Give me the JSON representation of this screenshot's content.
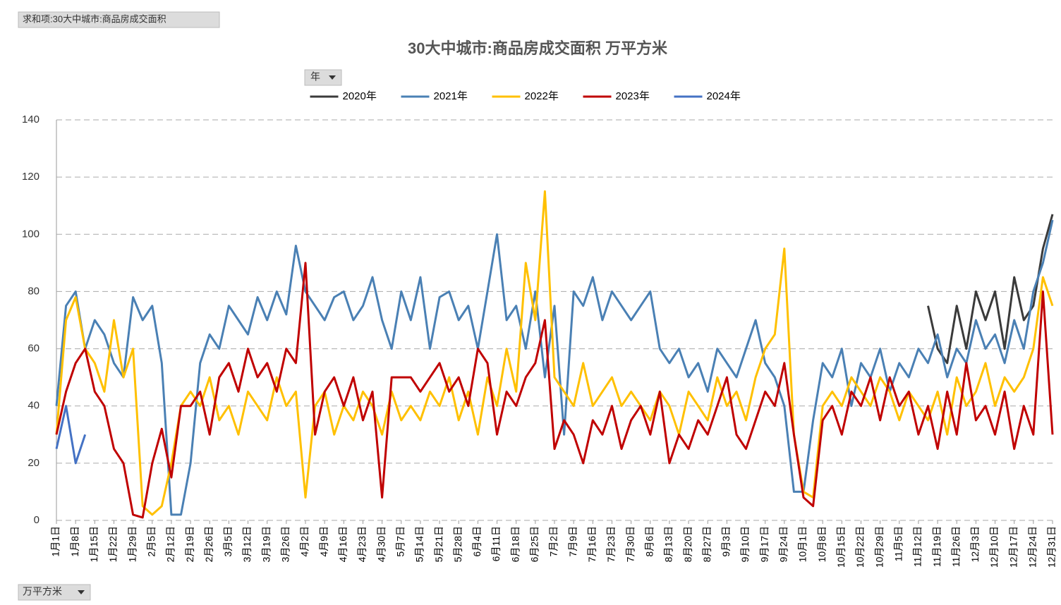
{
  "ui": {
    "field_tag": "求和项:30大中城市:商品房成交面积",
    "filter_button": "年",
    "unit_button": "万平方米"
  },
  "chart_data": {
    "type": "line",
    "title": "30大中城市:商品房成交面积 万平方米",
    "categories": [
      "1月1日",
      null,
      "1月8日",
      null,
      "1月15日",
      null,
      "1月22日",
      null,
      "1月29日",
      null,
      "2月5日",
      null,
      "2月12日",
      null,
      "2月19日",
      null,
      "2月26日",
      null,
      "3月5日",
      null,
      "3月12日",
      null,
      "3月19日",
      null,
      "3月26日",
      null,
      "4月2日",
      null,
      "4月9日",
      null,
      "4月16日",
      null,
      "4月23日",
      null,
      "4月30日",
      null,
      "5月7日",
      null,
      "5月14日",
      null,
      "5月21日",
      null,
      "5月28日",
      null,
      "6月4日",
      null,
      "6月11日",
      null,
      "6月18日",
      null,
      "6月25日",
      null,
      "7月2日",
      null,
      "7月9日",
      null,
      "7月16日",
      null,
      "7月23日",
      null,
      "7月30日",
      null,
      "8月6日",
      null,
      "8月13日",
      null,
      "8月20日",
      null,
      "8月27日",
      null,
      "9月3日",
      null,
      "9月10日",
      null,
      "9月17日",
      null,
      "9月24日",
      null,
      "10月1日",
      null,
      "10月8日",
      null,
      "10月15日",
      null,
      "10月22日",
      null,
      "10月29日",
      null,
      "11月5日",
      null,
      "11月12日",
      null,
      "11月19日",
      null,
      "11月26日",
      null,
      "12月3日",
      null,
      "12月10日",
      null,
      "12月17日",
      null,
      "12月24日",
      null,
      "12月31日"
    ],
    "series": [
      {
        "name": "2020年",
        "color": "#3a3a3a",
        "values": [
          null,
          null,
          null,
          null,
          null,
          null,
          null,
          null,
          null,
          null,
          null,
          null,
          null,
          null,
          null,
          null,
          null,
          null,
          null,
          null,
          null,
          null,
          null,
          null,
          null,
          null,
          null,
          null,
          null,
          null,
          null,
          null,
          null,
          null,
          null,
          null,
          null,
          null,
          null,
          null,
          null,
          null,
          null,
          null,
          null,
          null,
          null,
          null,
          null,
          null,
          null,
          null,
          null,
          null,
          null,
          null,
          null,
          null,
          null,
          null,
          null,
          null,
          null,
          null,
          null,
          null,
          null,
          null,
          null,
          null,
          null,
          null,
          null,
          null,
          null,
          null,
          null,
          null,
          null,
          null,
          null,
          null,
          null,
          null,
          null,
          null,
          null,
          null,
          null,
          null,
          null,
          75,
          60,
          55,
          75,
          60,
          80,
          70,
          80,
          60,
          85,
          70,
          75,
          95,
          107
        ]
      },
      {
        "name": "2021年",
        "color": "#4a80b4",
        "values": [
          40,
          75,
          80,
          60,
          70,
          65,
          55,
          50,
          78,
          70,
          75,
          55,
          2,
          2,
          20,
          55,
          65,
          60,
          75,
          70,
          65,
          78,
          70,
          80,
          72,
          96,
          80,
          75,
          70,
          78,
          80,
          70,
          75,
          85,
          70,
          60,
          80,
          70,
          85,
          60,
          78,
          80,
          70,
          75,
          60,
          80,
          100,
          70,
          75,
          60,
          80,
          50,
          75,
          30,
          80,
          75,
          85,
          70,
          80,
          75,
          70,
          75,
          80,
          60,
          55,
          60,
          50,
          55,
          45,
          60,
          55,
          50,
          60,
          70,
          55,
          50,
          40,
          10,
          10,
          35,
          55,
          50,
          60,
          40,
          55,
          50,
          60,
          45,
          55,
          50,
          60,
          55,
          65,
          50,
          60,
          55,
          70,
          60,
          65,
          55,
          70,
          60,
          80,
          90,
          105
        ]
      },
      {
        "name": "2022年",
        "color": "#ffc000",
        "values": [
          30,
          70,
          78,
          60,
          55,
          45,
          70,
          50,
          60,
          5,
          2,
          5,
          20,
          40,
          45,
          40,
          50,
          35,
          40,
          30,
          45,
          40,
          35,
          50,
          40,
          45,
          8,
          40,
          45,
          30,
          40,
          35,
          45,
          40,
          30,
          45,
          35,
          40,
          35,
          45,
          40,
          50,
          35,
          45,
          30,
          50,
          40,
          60,
          45,
          90,
          70,
          115,
          50,
          45,
          40,
          55,
          40,
          45,
          50,
          40,
          45,
          40,
          35,
          45,
          40,
          30,
          45,
          40,
          35,
          50,
          40,
          45,
          35,
          50,
          60,
          65,
          95,
          30,
          10,
          8,
          40,
          45,
          40,
          50,
          45,
          40,
          50,
          45,
          35,
          45,
          40,
          35,
          45,
          30,
          50,
          40,
          45,
          55,
          40,
          50,
          45,
          50,
          60,
          85,
          75
        ]
      },
      {
        "name": "2023年",
        "color": "#c00000",
        "values": [
          30,
          45,
          55,
          60,
          45,
          40,
          25,
          20,
          2,
          1,
          20,
          32,
          15,
          40,
          40,
          45,
          30,
          50,
          55,
          45,
          60,
          50,
          55,
          45,
          60,
          55,
          90,
          30,
          45,
          50,
          40,
          50,
          35,
          45,
          8,
          50,
          50,
          50,
          45,
          50,
          55,
          45,
          50,
          40,
          60,
          55,
          30,
          45,
          40,
          50,
          55,
          70,
          25,
          35,
          30,
          20,
          35,
          30,
          40,
          25,
          35,
          40,
          30,
          45,
          20,
          30,
          25,
          35,
          30,
          40,
          50,
          30,
          25,
          35,
          45,
          40,
          55,
          30,
          8,
          5,
          35,
          40,
          30,
          45,
          40,
          50,
          35,
          50,
          40,
          45,
          30,
          40,
          25,
          45,
          30,
          55,
          35,
          40,
          30,
          45,
          25,
          40,
          30,
          80,
          30
        ]
      },
      {
        "name": "2024年",
        "color": "#4472c4",
        "values": [
          25,
          40,
          20,
          30,
          null,
          null,
          null,
          null,
          null,
          null,
          null,
          null,
          null,
          null,
          null,
          null,
          null,
          null,
          null,
          null,
          null,
          null,
          null,
          null,
          null,
          null,
          null,
          null,
          null,
          null,
          null,
          null,
          null,
          null,
          null,
          null,
          null,
          null,
          null,
          null,
          null,
          null,
          null,
          null,
          null,
          null,
          null,
          null,
          null,
          null,
          null,
          null,
          null,
          null,
          null,
          null,
          null,
          null,
          null,
          null,
          null,
          null,
          null,
          null,
          null,
          null,
          null,
          null,
          null,
          null,
          null,
          null,
          null,
          null,
          null,
          null,
          null,
          null,
          null,
          null,
          null,
          null,
          null,
          null,
          null,
          null,
          null,
          null,
          null,
          null,
          null,
          null,
          null,
          null,
          null,
          null,
          null,
          null,
          null,
          null,
          null,
          null,
          null,
          null,
          null
        ]
      }
    ],
    "ylim": [
      0,
      140
    ],
    "yticks": [
      0,
      20,
      40,
      60,
      80,
      100,
      120,
      140
    ],
    "grid": true
  }
}
